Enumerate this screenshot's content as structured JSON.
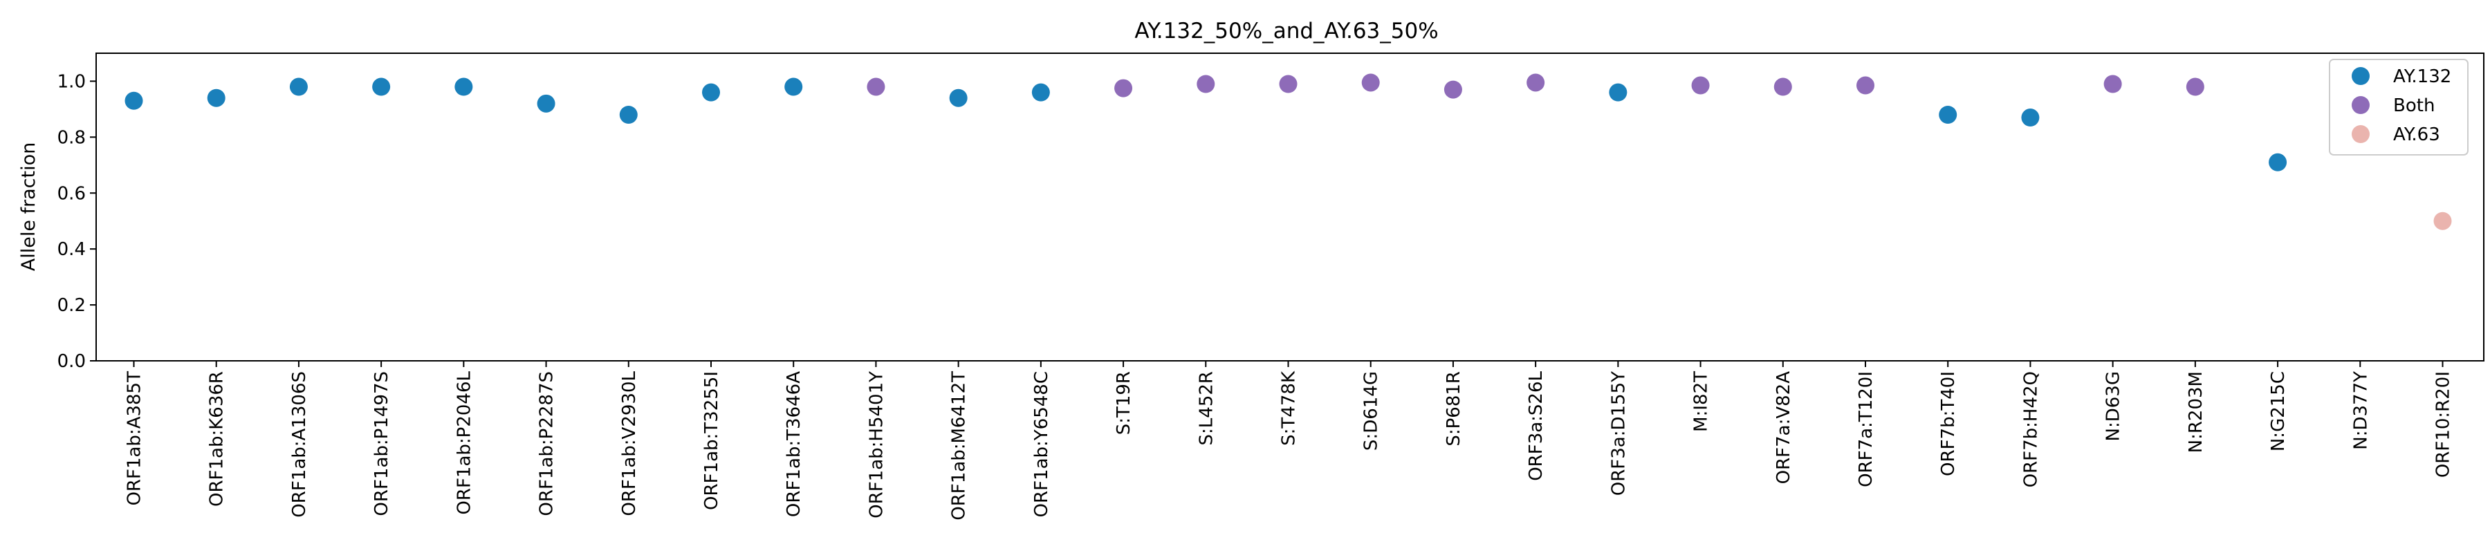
{
  "chart_data": {
    "type": "scatter",
    "title": "AY.132_50%_and_AY.63_50%",
    "xlabel": "",
    "ylabel": "Allele fraction",
    "ylim": [
      0.0,
      1.1
    ],
    "yticks": [
      "0.0",
      "0.2",
      "0.4",
      "0.6",
      "0.8",
      "1.0"
    ],
    "grid": false,
    "legend_position": "top-right",
    "categories": [
      "ORF1ab:A385T",
      "ORF1ab:K636R",
      "ORF1ab:A1306S",
      "ORF1ab:P1497S",
      "ORF1ab:P2046L",
      "ORF1ab:P2287S",
      "ORF1ab:V2930L",
      "ORF1ab:T3255I",
      "ORF1ab:T3646A",
      "ORF1ab:H5401Y",
      "ORF1ab:M6412T",
      "ORF1ab:Y6548C",
      "S:T19R",
      "S:L452R",
      "S:T478K",
      "S:D614G",
      "S:P681R",
      "ORF3a:S26L",
      "ORF3a:D155Y",
      "M:I82T",
      "ORF7a:V82A",
      "ORF7a:T120I",
      "ORF7b:T40I",
      "ORF7b:H42Q",
      "N:D63G",
      "N:R203M",
      "N:G215C",
      "N:D377Y",
      "ORF10:R20I"
    ],
    "series": [
      {
        "name": "AY.132",
        "color": "#1a80bb",
        "points": [
          {
            "x": "ORF1ab:A385T",
            "y": 0.93
          },
          {
            "x": "ORF1ab:K636R",
            "y": 0.94
          },
          {
            "x": "ORF1ab:A1306S",
            "y": 0.98
          },
          {
            "x": "ORF1ab:P1497S",
            "y": 0.98
          },
          {
            "x": "ORF1ab:P2046L",
            "y": 0.98
          },
          {
            "x": "ORF1ab:P2287S",
            "y": 0.92
          },
          {
            "x": "ORF1ab:V2930L",
            "y": 0.88
          },
          {
            "x": "ORF1ab:T3255I",
            "y": 0.96
          },
          {
            "x": "ORF1ab:T3646A",
            "y": 0.98
          },
          {
            "x": "ORF1ab:M6412T",
            "y": 0.94
          },
          {
            "x": "ORF1ab:Y6548C",
            "y": 0.96
          },
          {
            "x": "ORF3a:D155Y",
            "y": 0.96
          },
          {
            "x": "ORF7b:T40I",
            "y": 0.88
          },
          {
            "x": "ORF7b:H42Q",
            "y": 0.87
          },
          {
            "x": "N:G215C",
            "y": 0.71
          }
        ]
      },
      {
        "name": "Both",
        "color": "#8e6bb8",
        "points": [
          {
            "x": "ORF1ab:H5401Y",
            "y": 0.98
          },
          {
            "x": "S:T19R",
            "y": 0.975
          },
          {
            "x": "S:L452R",
            "y": 0.99
          },
          {
            "x": "S:T478K",
            "y": 0.99
          },
          {
            "x": "S:D614G",
            "y": 0.995
          },
          {
            "x": "S:P681R",
            "y": 0.97
          },
          {
            "x": "ORF3a:S26L",
            "y": 0.995
          },
          {
            "x": "M:I82T",
            "y": 0.985
          },
          {
            "x": "ORF7a:V82A",
            "y": 0.98
          },
          {
            "x": "ORF7a:T120I",
            "y": 0.985
          },
          {
            "x": "N:D63G",
            "y": 0.99
          },
          {
            "x": "N:R203M",
            "y": 0.98
          }
        ]
      },
      {
        "name": "AY.63",
        "color": "#eab4ae",
        "points": [
          {
            "x": "ORF10:R20I",
            "y": 0.5
          }
        ]
      }
    ]
  }
}
